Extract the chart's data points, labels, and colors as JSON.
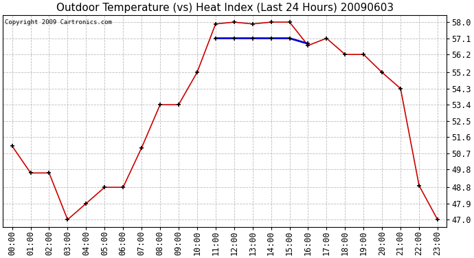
{
  "title": "Outdoor Temperature (vs) Heat Index (Last 24 Hours) 20090603",
  "copyright": "Copyright 2009 Cartronics.com",
  "x_labels": [
    "00:00",
    "01:00",
    "02:00",
    "03:00",
    "04:00",
    "05:00",
    "06:00",
    "07:00",
    "08:00",
    "09:00",
    "10:00",
    "11:00",
    "12:00",
    "13:00",
    "14:00",
    "15:00",
    "16:00",
    "17:00",
    "18:00",
    "19:00",
    "20:00",
    "21:00",
    "22:00",
    "23:00"
  ],
  "temp_values": [
    51.1,
    49.6,
    49.6,
    47.0,
    47.9,
    48.8,
    48.8,
    51.0,
    53.4,
    53.4,
    55.2,
    57.9,
    58.0,
    57.9,
    58.0,
    58.0,
    56.7,
    57.1,
    56.2,
    56.2,
    55.2,
    54.3,
    48.9,
    47.0
  ],
  "heat_values": [
    null,
    null,
    null,
    null,
    null,
    null,
    null,
    null,
    null,
    null,
    null,
    57.1,
    57.1,
    57.1,
    57.1,
    57.1,
    56.8,
    null,
    null,
    null,
    null,
    null,
    null,
    null
  ],
  "y_ticks": [
    47.0,
    47.9,
    48.8,
    49.8,
    50.7,
    51.6,
    52.5,
    53.4,
    54.3,
    55.2,
    56.2,
    57.1,
    58.0
  ],
  "temp_color": "#cc0000",
  "heat_color": "#0000cc",
  "bg_color": "#ffffff",
  "grid_color": "#bbbbbb",
  "title_fontsize": 11,
  "copyright_fontsize": 6.5,
  "tick_fontsize": 8.5
}
